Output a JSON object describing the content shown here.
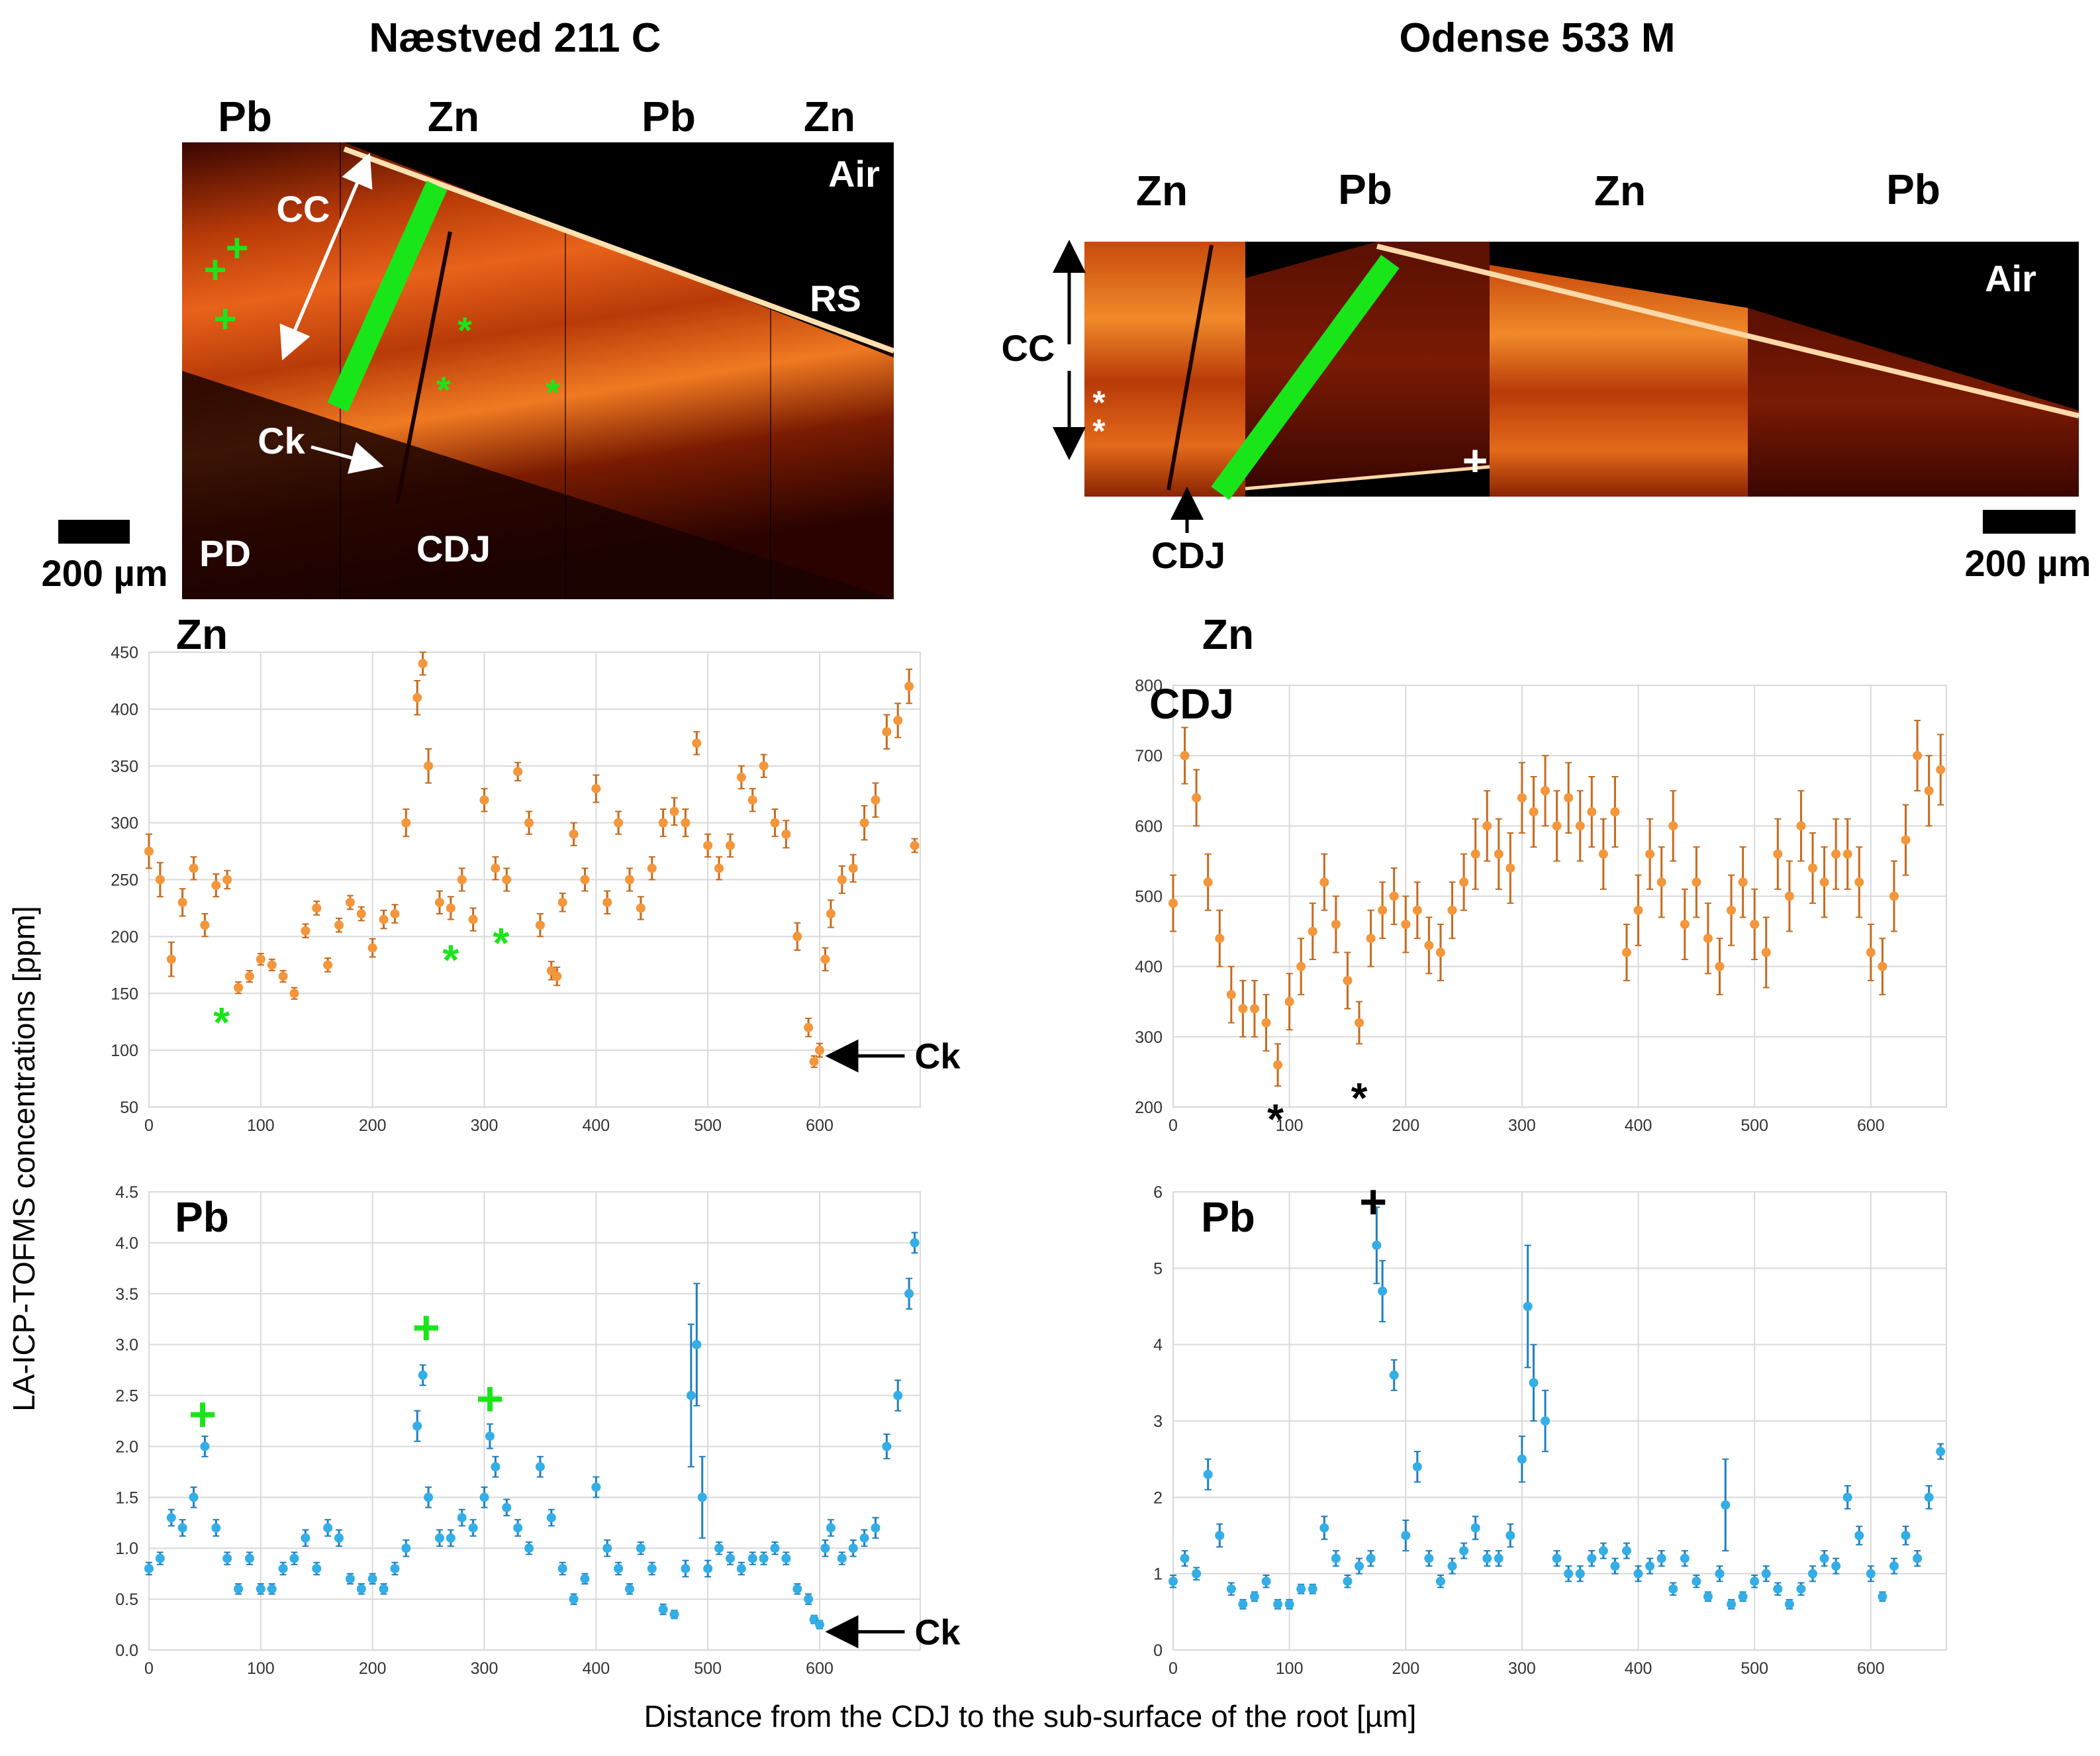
{
  "colors": {
    "zn": "#f4963a",
    "pb": "#33aee6",
    "zn_err": "#c66a1e",
    "pb_err": "#1f7fc0",
    "marker_green": "#19e619"
  },
  "panels": {
    "left_title": "Næstved 211 C",
    "right_title": "Odense 533 M",
    "left_image": {
      "strips": [
        "Pb",
        "Zn",
        "Pb",
        "Zn"
      ],
      "labels": {
        "cc": "CC",
        "ck": "Ck",
        "pd": "PD",
        "cdj": "CDJ",
        "air": "Air",
        "rs": "RS"
      },
      "scale": "200 µm"
    },
    "right_image": {
      "strips": [
        "Zn",
        "Pb",
        "Zn",
        "Pb"
      ],
      "labels": {
        "cc": "CC",
        "cdj": "CDJ",
        "air": "Air"
      },
      "scale": "200 µm"
    }
  },
  "annotations": {
    "star": "*",
    "plus": "+",
    "ck": "Ck",
    "cdj": "CDJ"
  },
  "y_axis_label": "LA-ICP-TOFMS concentrations [ppm]",
  "x_axis_label": "Distance from the CDJ to the sub-surface of the root [µm]",
  "chart_data": [
    {
      "id": "zn_left",
      "type": "scatter",
      "title": "Zn",
      "element": "Zn",
      "xlim": [
        0,
        690
      ],
      "xticks": [
        0,
        100,
        200,
        300,
        400,
        500,
        600
      ],
      "ylim": [
        50,
        450
      ],
      "yticks": [
        50,
        100,
        150,
        200,
        250,
        300,
        350,
        400,
        450
      ],
      "x": [
        0,
        10,
        20,
        30,
        40,
        50,
        60,
        70,
        80,
        90,
        100,
        110,
        120,
        130,
        140,
        150,
        160,
        170,
        180,
        190,
        200,
        210,
        220,
        230,
        240,
        245,
        250,
        260,
        270,
        280,
        290,
        300,
        310,
        320,
        330,
        340,
        350,
        360,
        365,
        370,
        380,
        390,
        400,
        410,
        420,
        430,
        440,
        450,
        460,
        470,
        480,
        490,
        500,
        510,
        520,
        530,
        540,
        550,
        560,
        570,
        580,
        590,
        595,
        600,
        605,
        610,
        620,
        630,
        640,
        650,
        660,
        670,
        680,
        685
      ],
      "values": [
        275,
        250,
        180,
        230,
        260,
        210,
        245,
        250,
        155,
        165,
        180,
        175,
        165,
        150,
        205,
        225,
        175,
        210,
        230,
        220,
        190,
        215,
        220,
        300,
        410,
        440,
        350,
        230,
        225,
        250,
        215,
        320,
        260,
        250,
        345,
        300,
        210,
        170,
        165,
        230,
        290,
        250,
        330,
        230,
        300,
        250,
        225,
        260,
        300,
        310,
        300,
        370,
        280,
        260,
        280,
        340,
        320,
        350,
        300,
        290,
        200,
        120,
        90,
        100,
        180,
        220,
        250,
        260,
        300,
        320,
        380,
        390,
        420,
        280
      ],
      "err": [
        15,
        15,
        15,
        12,
        10,
        10,
        10,
        8,
        5,
        5,
        5,
        5,
        5,
        5,
        6,
        6,
        6,
        6,
        6,
        6,
        8,
        8,
        8,
        12,
        15,
        10,
        15,
        10,
        10,
        10,
        10,
        10,
        10,
        10,
        8,
        10,
        10,
        8,
        8,
        8,
        10,
        10,
        12,
        10,
        10,
        10,
        10,
        10,
        12,
        12,
        12,
        10,
        10,
        10,
        10,
        10,
        10,
        10,
        12,
        12,
        12,
        8,
        5,
        6,
        10,
        12,
        12,
        12,
        15,
        15,
        15,
        15,
        15,
        6
      ],
      "annotations": [
        {
          "text": "*",
          "x": 65,
          "y": 135,
          "color": "#19e619"
        },
        {
          "text": "*",
          "x": 270,
          "y": 190,
          "color": "#19e619"
        },
        {
          "text": "*",
          "x": 315,
          "y": 205,
          "color": "#19e619"
        },
        {
          "text": "Ck",
          "x": 605,
          "y": 95,
          "color": "#000000",
          "arrow": true
        }
      ]
    },
    {
      "id": "zn_right",
      "type": "scatter",
      "title": "Zn",
      "element": "Zn",
      "inner_label": "CDJ",
      "xlim": [
        0,
        665
      ],
      "xticks": [
        0,
        100,
        200,
        300,
        400,
        500,
        600
      ],
      "ylim": [
        200,
        800
      ],
      "yticks": [
        200,
        300,
        400,
        500,
        600,
        700,
        800
      ],
      "x": [
        0,
        10,
        20,
        30,
        40,
        50,
        60,
        70,
        80,
        90,
        100,
        110,
        120,
        130,
        140,
        150,
        160,
        170,
        180,
        190,
        200,
        210,
        220,
        230,
        240,
        250,
        260,
        270,
        280,
        290,
        300,
        310,
        320,
        330,
        340,
        350,
        360,
        370,
        380,
        390,
        400,
        410,
        420,
        430,
        440,
        450,
        460,
        470,
        480,
        490,
        500,
        510,
        520,
        530,
        540,
        550,
        560,
        570,
        580,
        590,
        600,
        610,
        620,
        630,
        640,
        650,
        660
      ],
      "values": [
        490,
        700,
        640,
        520,
        440,
        360,
        340,
        340,
        320,
        260,
        350,
        400,
        450,
        520,
        460,
        380,
        320,
        440,
        480,
        500,
        460,
        480,
        430,
        420,
        480,
        520,
        560,
        600,
        560,
        540,
        640,
        620,
        650,
        600,
        640,
        600,
        620,
        560,
        620,
        420,
        480,
        560,
        520,
        600,
        460,
        520,
        440,
        400,
        480,
        520,
        460,
        420,
        560,
        500,
        600,
        540,
        520,
        560,
        560,
        520,
        420,
        400,
        500,
        580,
        700,
        650,
        680
      ],
      "err": [
        40,
        40,
        40,
        40,
        40,
        40,
        40,
        40,
        40,
        30,
        40,
        40,
        40,
        40,
        40,
        40,
        30,
        40,
        40,
        40,
        40,
        40,
        40,
        40,
        40,
        40,
        50,
        50,
        50,
        50,
        50,
        50,
        50,
        50,
        50,
        50,
        50,
        50,
        50,
        40,
        50,
        50,
        50,
        50,
        50,
        50,
        50,
        40,
        50,
        50,
        50,
        50,
        50,
        50,
        50,
        50,
        50,
        50,
        50,
        50,
        40,
        40,
        50,
        50,
        50,
        50,
        50
      ],
      "annotations": [
        {
          "text": "*",
          "x": 88,
          "y": 200,
          "color": "#000000"
        },
        {
          "text": "*",
          "x": 160,
          "y": 230,
          "color": "#000000"
        }
      ]
    },
    {
      "id": "pb_left",
      "type": "scatter",
      "title": "Pb",
      "element": "Pb",
      "xlim": [
        0,
        690
      ],
      "xticks": [
        0,
        100,
        200,
        300,
        400,
        500,
        600
      ],
      "ylim": [
        0,
        4.5
      ],
      "yticks": [
        "0.0",
        "0.5",
        "1.0",
        "1.5",
        "2.0",
        "2.5",
        "3.0",
        "3.5",
        "4.0",
        "4.5"
      ],
      "x": [
        0,
        10,
        20,
        30,
        40,
        50,
        60,
        70,
        80,
        90,
        100,
        110,
        120,
        130,
        140,
        150,
        160,
        170,
        180,
        190,
        200,
        210,
        220,
        230,
        240,
        245,
        250,
        260,
        270,
        280,
        290,
        300,
        305,
        310,
        320,
        330,
        340,
        350,
        360,
        370,
        380,
        390,
        400,
        410,
        420,
        430,
        440,
        450,
        460,
        470,
        480,
        485,
        490,
        495,
        500,
        510,
        520,
        530,
        540,
        550,
        560,
        570,
        580,
        590,
        595,
        600,
        605,
        610,
        620,
        630,
        640,
        650,
        660,
        670,
        680,
        685
      ],
      "values": [
        0.8,
        0.9,
        1.3,
        1.2,
        1.5,
        2.0,
        1.2,
        0.9,
        0.6,
        0.9,
        0.6,
        0.6,
        0.8,
        0.9,
        1.1,
        0.8,
        1.2,
        1.1,
        0.7,
        0.6,
        0.7,
        0.6,
        0.8,
        1.0,
        2.2,
        2.7,
        1.5,
        1.1,
        1.1,
        1.3,
        1.2,
        1.5,
        2.1,
        1.8,
        1.4,
        1.2,
        1.0,
        1.8,
        1.3,
        0.8,
        0.5,
        0.7,
        1.6,
        1.0,
        0.8,
        0.6,
        1.0,
        0.8,
        0.4,
        0.35,
        0.8,
        2.5,
        3.0,
        1.5,
        0.8,
        1.0,
        0.9,
        0.8,
        0.9,
        0.9,
        1.0,
        0.9,
        0.6,
        0.5,
        0.3,
        0.25,
        1.0,
        1.2,
        0.9,
        1.0,
        1.1,
        1.2,
        2.0,
        2.5,
        3.5,
        4.0
      ],
      "err": [
        0.06,
        0.06,
        0.08,
        0.08,
        0.1,
        0.1,
        0.08,
        0.06,
        0.05,
        0.06,
        0.05,
        0.05,
        0.06,
        0.06,
        0.08,
        0.06,
        0.08,
        0.08,
        0.05,
        0.05,
        0.05,
        0.05,
        0.06,
        0.08,
        0.15,
        0.1,
        0.1,
        0.08,
        0.08,
        0.08,
        0.08,
        0.1,
        0.12,
        0.1,
        0.08,
        0.08,
        0.06,
        0.1,
        0.08,
        0.06,
        0.05,
        0.05,
        0.1,
        0.08,
        0.06,
        0.05,
        0.06,
        0.06,
        0.05,
        0.04,
        0.08,
        0.7,
        0.6,
        0.4,
        0.08,
        0.06,
        0.06,
        0.06,
        0.06,
        0.06,
        0.06,
        0.06,
        0.05,
        0.05,
        0.04,
        0.04,
        0.08,
        0.08,
        0.06,
        0.08,
        0.08,
        0.1,
        0.12,
        0.15,
        0.15,
        0.1
      ],
      "annotations": [
        {
          "text": "+",
          "x": 48,
          "y": 2.3,
          "color": "#19e619"
        },
        {
          "text": "+",
          "x": 248,
          "y": 3.15,
          "color": "#19e619"
        },
        {
          "text": "+",
          "x": 305,
          "y": 2.45,
          "color": "#19e619"
        },
        {
          "text": "Ck",
          "x": 605,
          "y": 0.18,
          "color": "#000000",
          "arrow": true
        }
      ]
    },
    {
      "id": "pb_right",
      "type": "scatter",
      "title": "Pb",
      "element": "Pb",
      "xlim": [
        0,
        665
      ],
      "xticks": [
        0,
        100,
        200,
        300,
        400,
        500,
        600
      ],
      "ylim": [
        0,
        6
      ],
      "yticks": [
        0,
        1,
        2,
        3,
        4,
        5,
        6
      ],
      "x": [
        0,
        10,
        20,
        30,
        40,
        50,
        60,
        70,
        80,
        90,
        100,
        110,
        120,
        130,
        140,
        150,
        160,
        170,
        175,
        180,
        190,
        200,
        210,
        220,
        230,
        240,
        250,
        260,
        270,
        280,
        290,
        300,
        305,
        310,
        320,
        330,
        340,
        350,
        360,
        370,
        380,
        390,
        400,
        410,
        420,
        430,
        440,
        450,
        460,
        470,
        475,
        480,
        490,
        500,
        510,
        520,
        530,
        540,
        550,
        560,
        570,
        580,
        590,
        600,
        610,
        620,
        630,
        640,
        650,
        660
      ],
      "values": [
        0.9,
        1.2,
        1.0,
        2.3,
        1.5,
        0.8,
        0.6,
        0.7,
        0.9,
        0.6,
        0.6,
        0.8,
        0.8,
        1.6,
        1.2,
        0.9,
        1.1,
        1.2,
        5.3,
        4.7,
        3.6,
        1.5,
        2.4,
        1.2,
        0.9,
        1.1,
        1.3,
        1.6,
        1.2,
        1.2,
        1.5,
        2.5,
        4.5,
        3.5,
        3.0,
        1.2,
        1.0,
        1.0,
        1.2,
        1.3,
        1.1,
        1.3,
        1.0,
        1.1,
        1.2,
        0.8,
        1.2,
        0.9,
        0.7,
        1.0,
        1.9,
        0.6,
        0.7,
        0.9,
        1.0,
        0.8,
        0.6,
        0.8,
        1.0,
        1.2,
        1.1,
        2.0,
        1.5,
        1.0,
        0.7,
        1.1,
        1.5,
        1.2,
        2.0,
        2.6
      ],
      "err": [
        0.08,
        0.1,
        0.08,
        0.2,
        0.15,
        0.08,
        0.06,
        0.06,
        0.08,
        0.06,
        0.06,
        0.06,
        0.06,
        0.15,
        0.1,
        0.08,
        0.1,
        0.1,
        0.5,
        0.4,
        0.2,
        0.2,
        0.2,
        0.1,
        0.08,
        0.1,
        0.1,
        0.15,
        0.1,
        0.1,
        0.15,
        0.3,
        0.8,
        0.5,
        0.4,
        0.1,
        0.1,
        0.1,
        0.1,
        0.1,
        0.1,
        0.1,
        0.1,
        0.1,
        0.1,
        0.08,
        0.1,
        0.08,
        0.06,
        0.1,
        0.6,
        0.06,
        0.06,
        0.08,
        0.1,
        0.08,
        0.06,
        0.08,
        0.1,
        0.1,
        0.1,
        0.15,
        0.12,
        0.1,
        0.06,
        0.1,
        0.12,
        0.1,
        0.15,
        0.1
      ],
      "annotations": [
        {
          "text": "+",
          "x": 172,
          "y": 5.85,
          "color": "#000000"
        }
      ]
    }
  ]
}
